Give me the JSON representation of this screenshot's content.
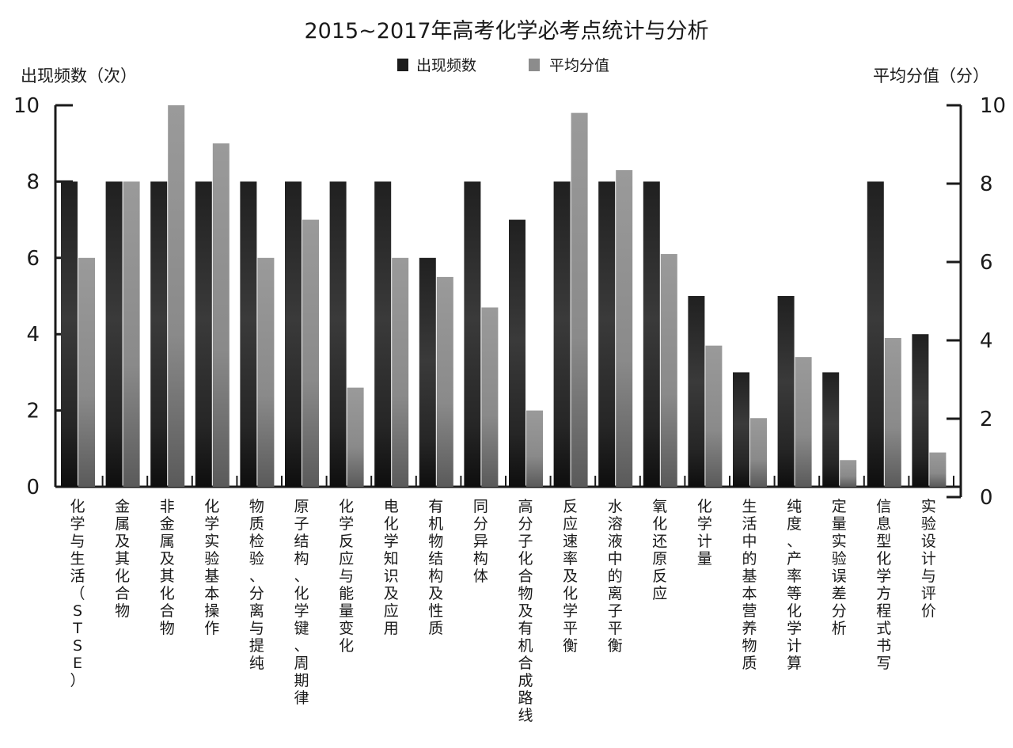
{
  "chart_data": {
    "type": "bar",
    "title": "2015~2017年高考化学必考点统计与分析",
    "ylabel_left": "出现频数（次）",
    "ylabel_right": "平均分值（分）",
    "ylim_left": [
      0,
      10
    ],
    "ylim_right": [
      0,
      10
    ],
    "yticks_left": [
      "0",
      "2",
      "4",
      "6",
      "8",
      "10"
    ],
    "yticks_right": [
      "0",
      "2",
      "4",
      "6",
      "8",
      "10"
    ],
    "legend_position": "top-center",
    "grid": false,
    "categories": [
      "化学与生活（STSE）",
      "金属及其化合物",
      "非金属及其化合物",
      "化学实验基本操作",
      "物质检验、分离与提纯",
      "原子结构、化学键、周期律",
      "化学反应与能量变化",
      "电化学知识及应用",
      "有机物结构及性质",
      "同分异构体",
      "高分子化合物及有机合成路线",
      "反应速率及化学平衡",
      "水溶液中的离子平衡",
      "氧化还原反应",
      "化学计量",
      "生活中的基本营养物质",
      "纯度、产率等化学计算",
      "定量实验误差分析",
      "信息型化学方程式书写",
      "实验设计与评价"
    ],
    "series": [
      {
        "name": "出现频数",
        "axis": "left",
        "color": "#1c1c1c",
        "values": [
          8,
          8,
          8,
          8,
          8,
          8,
          8,
          8,
          6,
          8,
          7,
          8,
          8,
          8,
          5,
          3,
          5,
          3,
          8,
          4
        ]
      },
      {
        "name": "平均分值",
        "axis": "right",
        "color": "#8c8c8c",
        "values": [
          6,
          8,
          10,
          9,
          6,
          7,
          2.6,
          6,
          5.5,
          4.7,
          2,
          9.8,
          8.3,
          6.1,
          3.7,
          1.8,
          3.4,
          0.7,
          3.9,
          0.9
        ]
      }
    ]
  }
}
